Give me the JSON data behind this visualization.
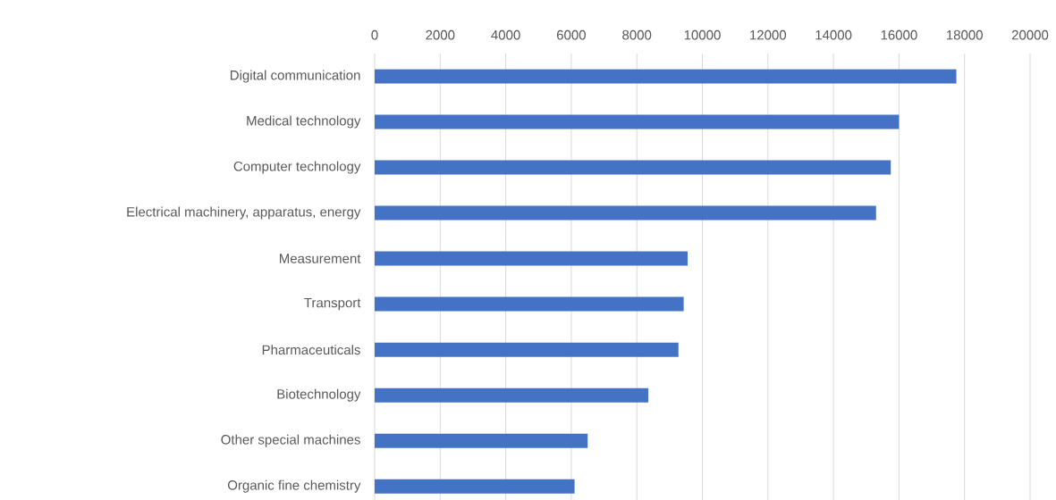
{
  "chart_data": {
    "type": "bar",
    "orientation": "horizontal",
    "categories": [
      "Digital communication",
      "Medical technology",
      "Computer technology",
      "Electrical machinery, apparatus, energy",
      "Measurement",
      "Transport",
      "Pharmaceuticals",
      "Biotechnology",
      "Other special machines",
      "Organic fine chemistry"
    ],
    "values": [
      17750,
      16000,
      15750,
      15300,
      9550,
      9430,
      9270,
      8350,
      6500,
      6100
    ],
    "color": "#4472c4",
    "xlim": [
      0,
      20000
    ],
    "xticks": [
      0,
      2000,
      4000,
      6000,
      8000,
      10000,
      12000,
      14000,
      16000,
      18000,
      20000
    ],
    "grid": "x"
  }
}
